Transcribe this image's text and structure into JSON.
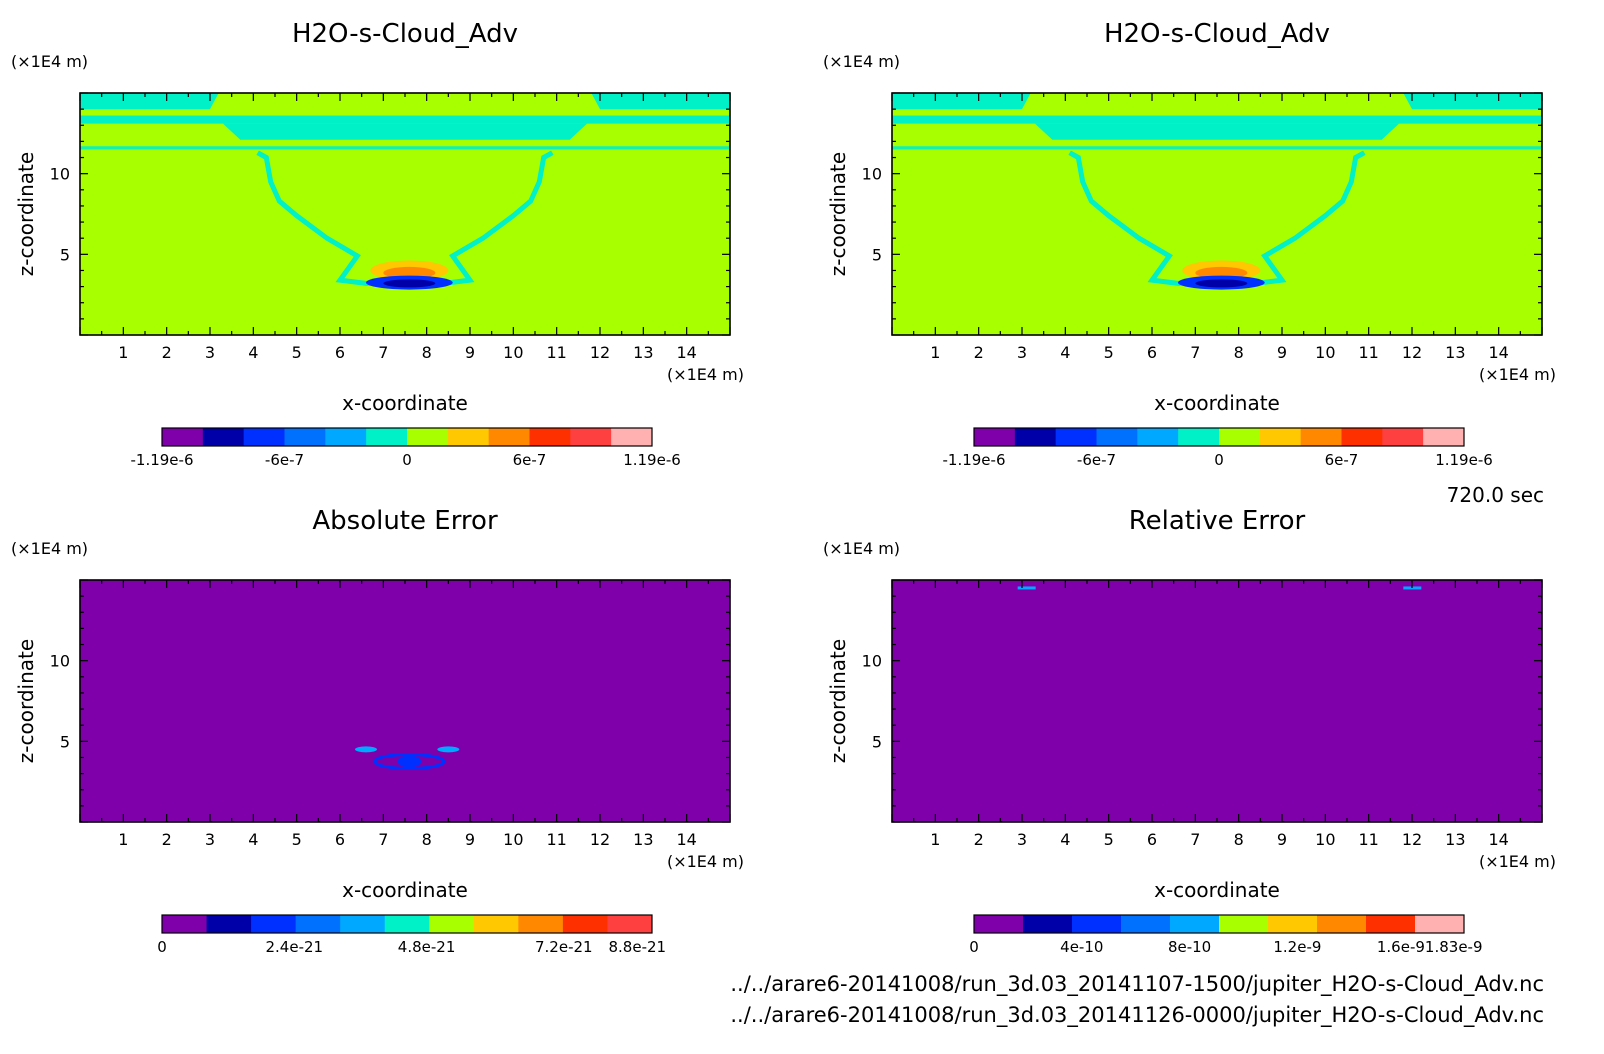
{
  "meta": {
    "time_label": "720.0 sec",
    "files": [
      "../../arare6-20141008/run_3d.03_20141107-1500/jupiter_H2O-s-Cloud_Adv.nc",
      "../../arare6-20141008/run_3d.03_20141126-0000/jupiter_H2O-s-Cloud_Adv.nc"
    ]
  },
  "colors": {
    "purple": "#7f00aa",
    "darkblue": "#0000a8",
    "blue": "#0030ff",
    "midblue": "#0070ff",
    "lightblue": "#00a8ff",
    "cyan": "#00f0c8",
    "green": "#a8ff00",
    "yellow": "#ffc800",
    "orange": "#ff8800",
    "red": "#ff3000",
    "pink": "#ff4040",
    "lightpink": "#ffb0b0"
  },
  "chart_data": [
    {
      "type": "heatmap",
      "title": "H2O-s-Cloud_Adv",
      "xlabel": "x-coordinate",
      "ylabel": "z-coordinate",
      "x_unit": "(×1E4 m)",
      "y_unit": "(×1E4 m)",
      "xlim": [
        0,
        15
      ],
      "ylim": [
        0,
        15
      ],
      "x_ticks": [
        "1",
        "2",
        "3",
        "4",
        "5",
        "6",
        "7",
        "8",
        "9",
        "10",
        "11",
        "12",
        "13",
        "14"
      ],
      "y_ticks": [
        "5",
        "10"
      ],
      "colorbar": {
        "colors": [
          "purple",
          "darkblue",
          "blue",
          "midblue",
          "lightblue",
          "cyan",
          "green",
          "yellow",
          "orange",
          "red",
          "pink",
          "lightpink"
        ],
        "labels": [
          "-1.19e-6",
          "-6e-7",
          "0",
          "6e-7",
          "1.19e-6"
        ]
      },
      "background": "green"
    },
    {
      "type": "heatmap",
      "title": "H2O-s-Cloud_Adv",
      "xlabel": "x-coordinate",
      "ylabel": "z-coordinate",
      "x_unit": "(×1E4 m)",
      "y_unit": "(×1E4 m)",
      "xlim": [
        0,
        15
      ],
      "ylim": [
        0,
        15
      ],
      "x_ticks": [
        "1",
        "2",
        "3",
        "4",
        "5",
        "6",
        "7",
        "8",
        "9",
        "10",
        "11",
        "12",
        "13",
        "14"
      ],
      "y_ticks": [
        "5",
        "10"
      ],
      "colorbar": {
        "colors": [
          "purple",
          "darkblue",
          "blue",
          "midblue",
          "lightblue",
          "cyan",
          "green",
          "yellow",
          "orange",
          "red",
          "pink",
          "lightpink"
        ],
        "labels": [
          "-1.19e-6",
          "-6e-7",
          "0",
          "6e-7",
          "1.19e-6"
        ]
      },
      "background": "green"
    },
    {
      "type": "heatmap",
      "title": "Absolute Error",
      "xlabel": "x-coordinate",
      "ylabel": "z-coordinate",
      "x_unit": "(×1E4 m)",
      "y_unit": "(×1E4 m)",
      "xlim": [
        0,
        15
      ],
      "ylim": [
        0,
        15
      ],
      "x_ticks": [
        "1",
        "2",
        "3",
        "4",
        "5",
        "6",
        "7",
        "8",
        "9",
        "10",
        "11",
        "12",
        "13",
        "14"
      ],
      "y_ticks": [
        "5",
        "10"
      ],
      "colorbar": {
        "colors": [
          "purple",
          "darkblue",
          "blue",
          "midblue",
          "lightblue",
          "cyan",
          "green",
          "yellow",
          "orange",
          "red",
          "pink"
        ],
        "labels": [
          "0",
          "2.4e-21",
          "4.8e-21",
          "7.2e-21",
          "8.8e-21"
        ]
      },
      "background": "purple"
    },
    {
      "type": "heatmap",
      "title": "Relative Error",
      "xlabel": "x-coordinate",
      "ylabel": "z-coordinate",
      "x_unit": "(×1E4 m)",
      "y_unit": "(×1E4 m)",
      "xlim": [
        0,
        15
      ],
      "ylim": [
        0,
        15
      ],
      "x_ticks": [
        "1",
        "2",
        "3",
        "4",
        "5",
        "6",
        "7",
        "8",
        "9",
        "10",
        "11",
        "12",
        "13",
        "14"
      ],
      "y_ticks": [
        "5",
        "10"
      ],
      "colorbar": {
        "colors": [
          "purple",
          "darkblue",
          "blue",
          "midblue",
          "lightblue",
          "green",
          "yellow",
          "orange",
          "red",
          "lightpink"
        ],
        "labels": [
          "0",
          "4e-10",
          "8e-10",
          "1.2e-9",
          "1.6e-91.83e-9"
        ]
      },
      "background": "purple"
    }
  ]
}
